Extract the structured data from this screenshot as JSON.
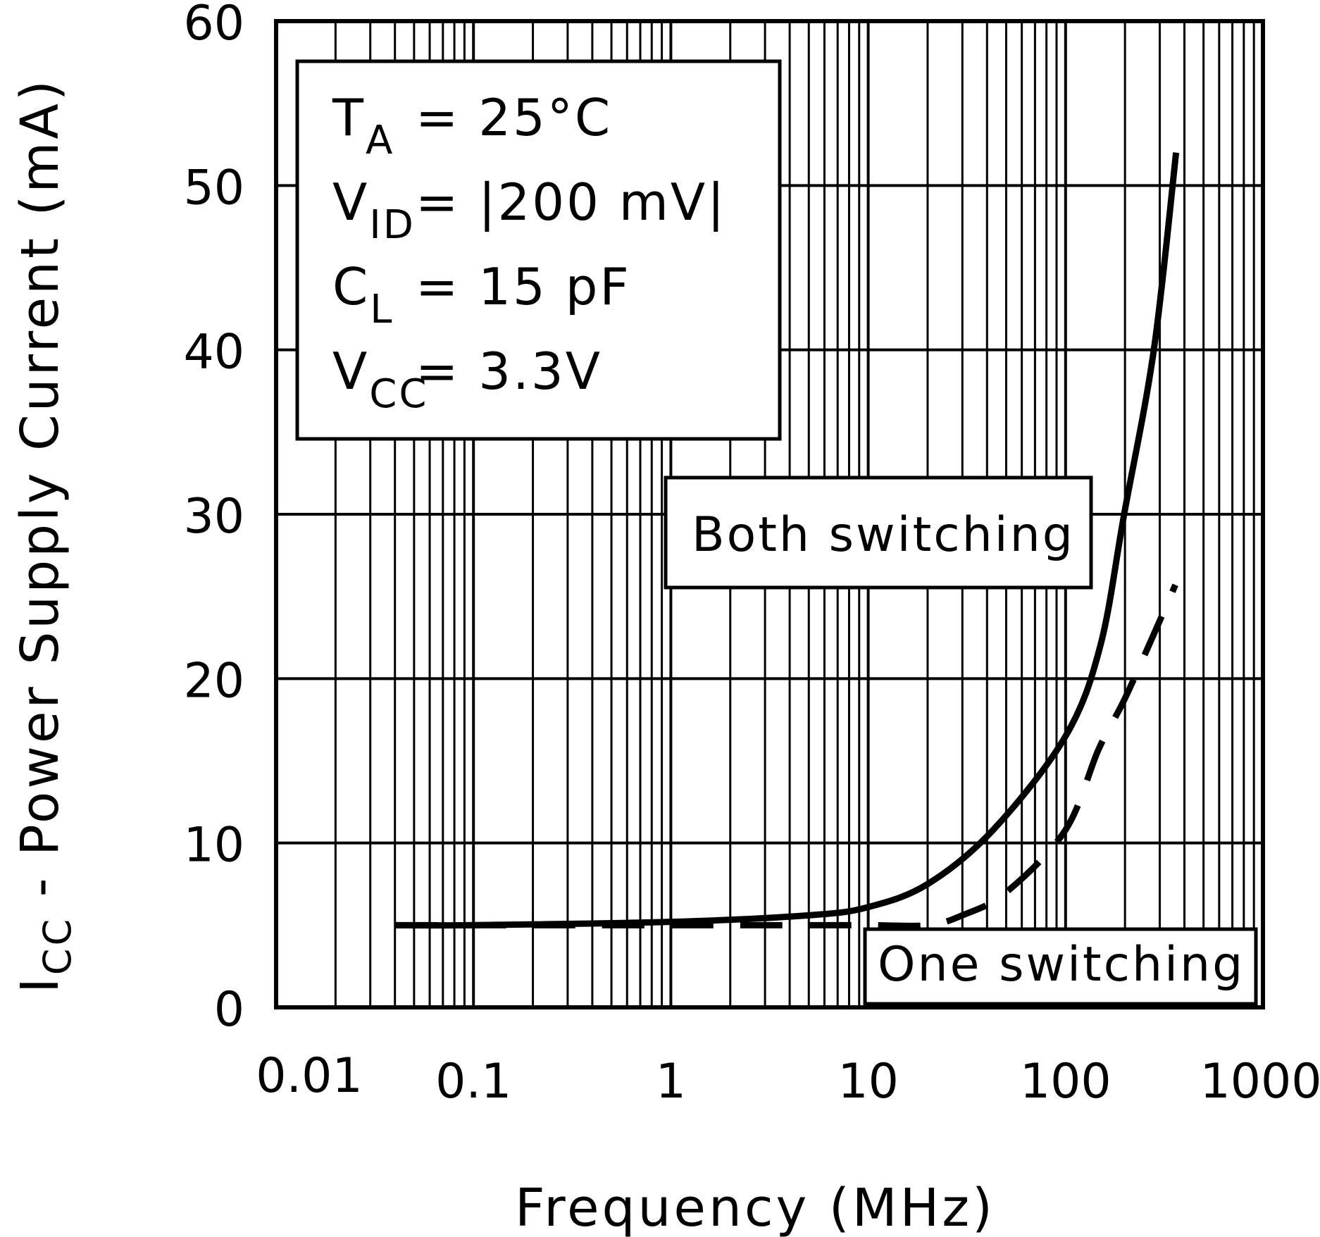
{
  "chart_data": {
    "type": "line",
    "xlabel": "Frequency (MHz)",
    "ylabel": {
      "symbol": "I",
      "sub": "CC",
      "text": " - Power Supply Current (mA)"
    },
    "xscale": "log",
    "xlim": [
      0.01,
      1000
    ],
    "ylim": [
      0,
      60
    ],
    "grid": true,
    "x_ticks": [
      "0.01",
      "0.1",
      "1",
      "10",
      "100",
      "1000"
    ],
    "y_ticks": [
      "0",
      "10",
      "20",
      "30",
      "40",
      "50",
      "60"
    ],
    "conditions": [
      {
        "symbol": "T",
        "sub": "A",
        "value": "=  25°C"
      },
      {
        "symbol": "V",
        "sub": "ID",
        "value": "=  |200 mV|"
      },
      {
        "symbol": "C",
        "sub": "L",
        "value": "=  15 pF"
      },
      {
        "symbol": "V",
        "sub": "CC",
        "value": "=  3.3V"
      }
    ],
    "series": [
      {
        "name": "Both switching",
        "style": "solid",
        "x": [
          0.04,
          0.1,
          1,
          5,
          10,
          20,
          43,
          100,
          150,
          198,
          280,
          363
        ],
        "y": [
          5,
          5,
          5.2,
          5.6,
          6.1,
          7.5,
          10.8,
          16.5,
          22,
          30,
          40,
          52
        ]
      },
      {
        "name": "One switching",
        "style": "dashed",
        "x": [
          0.04,
          0.1,
          1,
          5,
          10,
          20,
          30,
          50,
          100,
          147,
          200,
          297,
          360
        ],
        "y": [
          5,
          5,
          5,
          5,
          5,
          5,
          5.6,
          7,
          10.8,
          15.7,
          18.8,
          23.4,
          25.7
        ]
      }
    ],
    "colors": {
      "line": "#000000",
      "grid": "#000000",
      "background": "#ffffff"
    }
  }
}
